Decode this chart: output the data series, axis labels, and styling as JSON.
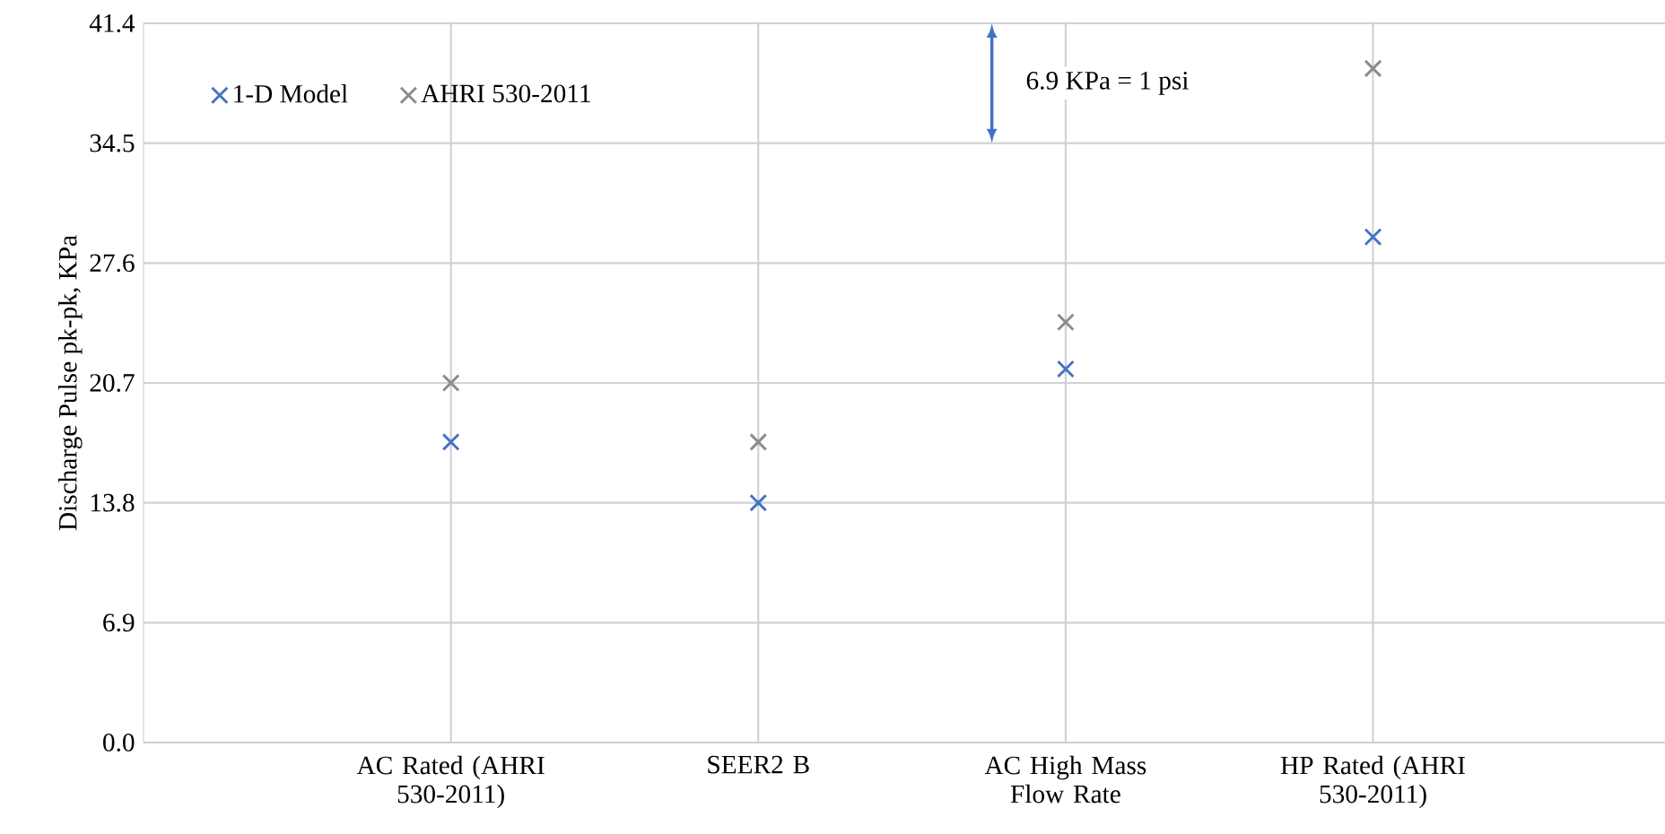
{
  "chart_data": {
    "type": "scatter",
    "ylabel": "Discharge Pulse pk-pk,  KPa",
    "categories": [
      "AC Rated (AHRI 530-2011)",
      "SEER2 B",
      "AC High Mass Flow Rate",
      "HP Rated (AHRI 530-2011)"
    ],
    "series": [
      {
        "name": "1-D Model",
        "color": "#4472c4",
        "marker": "cross",
        "values": [
          17.3,
          13.8,
          21.5,
          29.1
        ]
      },
      {
        "name": "AHRI 530-2011",
        "color": "#8c8c8c",
        "marker": "cross",
        "values": [
          20.7,
          17.3,
          24.2,
          38.8
        ]
      }
    ],
    "ylim": [
      0,
      41.4
    ],
    "yticks": [
      {
        "value": 0,
        "label": "0.0"
      },
      6.9,
      13.8,
      20.7,
      27.6,
      34.5,
      41.4
    ],
    "grid": true,
    "legend": "top left",
    "annotations": [
      "6.9 KPa = 1 psi"
    ]
  }
}
